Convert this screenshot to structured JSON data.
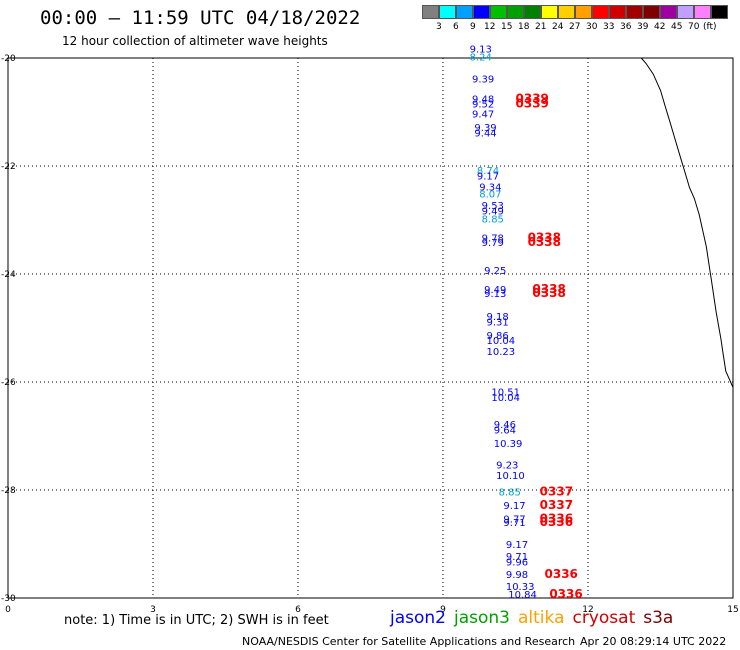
{
  "header": {
    "title": "00:00 – 11:59 UTC 04/18/2022",
    "subtitle": "12 hour collection of altimeter wave heights"
  },
  "legend": {
    "unit": "(ft)",
    "colors": [
      "#808080",
      "#00ffff",
      "#00a0ff",
      "#0000ff",
      "#00c000",
      "#00a000",
      "#008000",
      "#ffff00",
      "#ffd000",
      "#ffa000",
      "#ff0000",
      "#d00000",
      "#a00000",
      "#800000",
      "#a000a0",
      "#c0a0ff",
      "#ff80ff",
      "#000000"
    ],
    "labels": [
      "3",
      "6",
      "9",
      "12",
      "15",
      "18",
      "21",
      "24",
      "27",
      "30",
      "33",
      "36",
      "39",
      "42",
      "45",
      "70"
    ]
  },
  "note": "note: 1) Time is in UTC; 2) SWH is in feet",
  "satellites": [
    {
      "name": "jason2",
      "color": "#0000ff"
    },
    {
      "name": "jason3",
      "color": "#00a000"
    },
    {
      "name": "altika",
      "color": "#ffa000"
    },
    {
      "name": "cryosat",
      "color": "#d00000"
    },
    {
      "name": "s3a",
      "color": "#800000"
    }
  ],
  "footer": {
    "credit": "NOAA/NESDIS Center for Satellite Applications and Research",
    "date": "Apr 20 08:29:14 UTC 2022"
  },
  "chart_data": {
    "type": "scatter",
    "xlim": [
      0,
      15
    ],
    "ylim": [
      -30,
      -20
    ],
    "x_ticks": [
      "0",
      "3",
      "6",
      "9",
      "12",
      "15"
    ],
    "x_tick_values": [
      0,
      3,
      6,
      9,
      12,
      15
    ],
    "y_ticks": [
      "-20",
      "-22",
      "-24",
      "-26",
      "-28",
      "-30"
    ],
    "y_tick_values": [
      -20,
      -22,
      -24,
      -26,
      -28,
      -30
    ],
    "grid": true,
    "track_colors": {
      "jason2": "#0000ff",
      "altika_light": "#00a0d0",
      "cryosat": "#ff0000"
    },
    "points": [
      {
        "x": 9.55,
        "y": -19.9,
        "label": "9.13",
        "c": "#0000ff"
      },
      {
        "x": 9.55,
        "y": -20.05,
        "label": "8.24",
        "c": "#00a0d0"
      },
      {
        "x": 9.6,
        "y": -20.45,
        "label": "9.39",
        "c": "#0000ff"
      },
      {
        "x": 9.6,
        "y": -20.82,
        "label": "9.48",
        "c": "#0000ff"
      },
      {
        "x": 9.6,
        "y": -20.92,
        "label": "9.52",
        "c": "#0000ff"
      },
      {
        "x": 9.6,
        "y": -21.1,
        "label": "9.47",
        "c": "#0000ff"
      },
      {
        "x": 9.65,
        "y": -21.35,
        "label": "9.39",
        "c": "#0000ff"
      },
      {
        "x": 9.65,
        "y": -21.45,
        "label": "9.44",
        "c": "#0000ff"
      },
      {
        "x": 10.5,
        "y": -20.82,
        "label": "0339",
        "c": "#ff0000"
      },
      {
        "x": 10.5,
        "y": -20.92,
        "label": "0339",
        "c": "#ff0000"
      },
      {
        "x": 9.7,
        "y": -22.15,
        "label": "8.74",
        "c": "#00a0d0"
      },
      {
        "x": 9.7,
        "y": -22.25,
        "label": "9.17",
        "c": "#0000ff"
      },
      {
        "x": 9.75,
        "y": -22.45,
        "label": "9.34",
        "c": "#0000ff"
      },
      {
        "x": 9.75,
        "y": -22.58,
        "label": "8.07",
        "c": "#00a0d0"
      },
      {
        "x": 9.8,
        "y": -22.8,
        "label": "9.53",
        "c": "#0000ff"
      },
      {
        "x": 9.8,
        "y": -22.9,
        "label": "9.49",
        "c": "#0000ff"
      },
      {
        "x": 9.8,
        "y": -23.05,
        "label": "8.85",
        "c": "#00a0d0"
      },
      {
        "x": 9.8,
        "y": -23.4,
        "label": "9.78",
        "c": "#0000ff"
      },
      {
        "x": 9.8,
        "y": -23.48,
        "label": "9.79",
        "c": "#0000ff"
      },
      {
        "x": 10.75,
        "y": -23.4,
        "label": "0338",
        "c": "#ff0000"
      },
      {
        "x": 10.75,
        "y": -23.48,
        "label": "0338",
        "c": "#ff0000"
      },
      {
        "x": 9.85,
        "y": -24.0,
        "label": "9.25",
        "c": "#0000ff"
      },
      {
        "x": 9.85,
        "y": -24.35,
        "label": "9.49",
        "c": "#0000ff"
      },
      {
        "x": 9.85,
        "y": -24.43,
        "label": "9.13",
        "c": "#0000ff"
      },
      {
        "x": 10.85,
        "y": -24.35,
        "label": "0338",
        "c": "#ff0000"
      },
      {
        "x": 10.85,
        "y": -24.43,
        "label": "0338",
        "c": "#ff0000"
      },
      {
        "x": 9.9,
        "y": -24.85,
        "label": "9.18",
        "c": "#0000ff"
      },
      {
        "x": 9.9,
        "y": -24.95,
        "label": "9.31",
        "c": "#0000ff"
      },
      {
        "x": 9.9,
        "y": -25.2,
        "label": "9.86",
        "c": "#0000ff"
      },
      {
        "x": 9.9,
        "y": -25.3,
        "label": "10.04",
        "c": "#0000ff"
      },
      {
        "x": 9.9,
        "y": -25.5,
        "label": "10.23",
        "c": "#0000ff"
      },
      {
        "x": 10.0,
        "y": -26.25,
        "label": "10.51",
        "c": "#0000ff"
      },
      {
        "x": 10.0,
        "y": -26.35,
        "label": "10.04",
        "c": "#0000ff"
      },
      {
        "x": 10.05,
        "y": -26.85,
        "label": "9.46",
        "c": "#0000ff"
      },
      {
        "x": 10.05,
        "y": -26.95,
        "label": "9.64",
        "c": "#0000ff"
      },
      {
        "x": 10.05,
        "y": -27.2,
        "label": "10.39",
        "c": "#0000ff"
      },
      {
        "x": 10.1,
        "y": -27.6,
        "label": "9.23",
        "c": "#0000ff"
      },
      {
        "x": 10.1,
        "y": -27.8,
        "label": "10.10",
        "c": "#0000ff"
      },
      {
        "x": 10.15,
        "y": -28.1,
        "label": "8.85",
        "c": "#00a0d0"
      },
      {
        "x": 10.25,
        "y": -28.35,
        "label": "9.17",
        "c": "#0000ff"
      },
      {
        "x": 10.25,
        "y": -28.6,
        "label": "9.77",
        "c": "#0000ff"
      },
      {
        "x": 10.25,
        "y": -28.67,
        "label": "9.71",
        "c": "#0000ff"
      },
      {
        "x": 11.0,
        "y": -28.1,
        "label": "0337",
        "c": "#ff0000"
      },
      {
        "x": 11.0,
        "y": -28.35,
        "label": "0337",
        "c": "#ff0000"
      },
      {
        "x": 11.0,
        "y": -28.6,
        "label": "0336",
        "c": "#ff0000"
      },
      {
        "x": 11.0,
        "y": -28.67,
        "label": "0336",
        "c": "#ff0000"
      },
      {
        "x": 10.3,
        "y": -29.07,
        "label": "9.17",
        "c": "#0000ff"
      },
      {
        "x": 10.3,
        "y": -29.3,
        "label": "9.71",
        "c": "#0000ff"
      },
      {
        "x": 10.3,
        "y": -29.4,
        "label": "9.96",
        "c": "#0000ff"
      },
      {
        "x": 10.3,
        "y": -29.63,
        "label": "9.98",
        "c": "#0000ff"
      },
      {
        "x": 10.3,
        "y": -29.85,
        "label": "10.33",
        "c": "#0000ff"
      },
      {
        "x": 11.1,
        "y": -29.63,
        "label": "0336",
        "c": "#ff0000"
      },
      {
        "x": 10.35,
        "y": -30.0,
        "label": "10.84",
        "c": "#0000ff"
      },
      {
        "x": 11.2,
        "y": -30.0,
        "label": "0336",
        "c": "#ff0000"
      }
    ],
    "coastline": [
      [
        13.1,
        -20.0
      ],
      [
        13.2,
        -20.1
      ],
      [
        13.35,
        -20.3
      ],
      [
        13.5,
        -20.6
      ],
      [
        13.6,
        -20.9
      ],
      [
        13.7,
        -21.2
      ],
      [
        13.8,
        -21.5
      ],
      [
        13.9,
        -21.8
      ],
      [
        14.0,
        -22.1
      ],
      [
        14.1,
        -22.4
      ],
      [
        14.2,
        -22.6
      ],
      [
        14.3,
        -22.9
      ],
      [
        14.35,
        -23.1
      ],
      [
        14.4,
        -23.3
      ],
      [
        14.45,
        -23.5
      ],
      [
        14.5,
        -23.8
      ],
      [
        14.55,
        -24.1
      ],
      [
        14.6,
        -24.4
      ],
      [
        14.65,
        -24.7
      ],
      [
        14.7,
        -24.95
      ],
      [
        14.75,
        -25.2
      ],
      [
        14.8,
        -25.5
      ],
      [
        14.85,
        -25.8
      ],
      [
        14.95,
        -26.0
      ],
      [
        15.0,
        -26.1
      ]
    ]
  }
}
